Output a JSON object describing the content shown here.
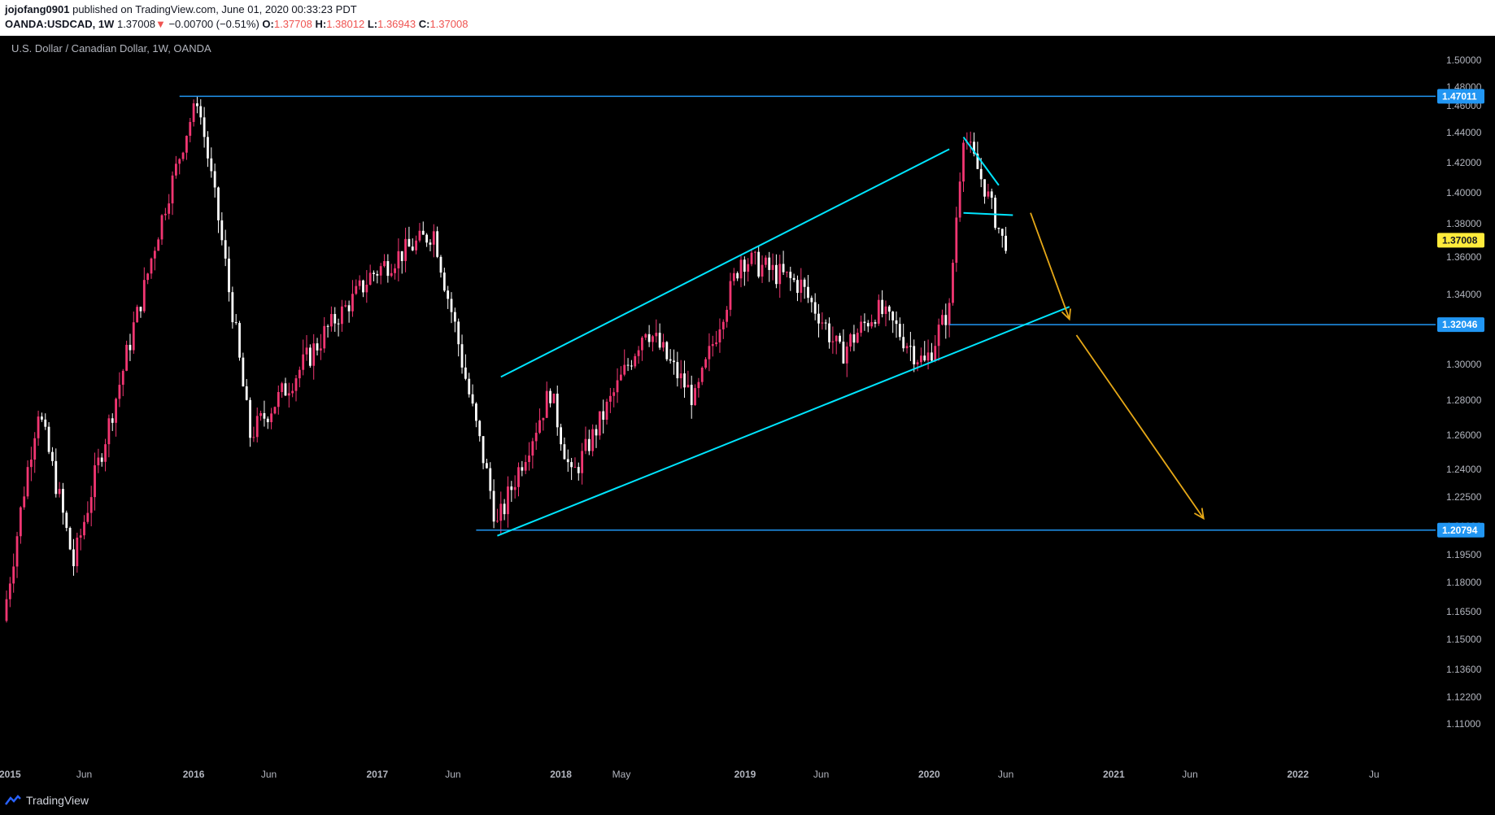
{
  "header": {
    "author": "jojofang0901",
    "published_text": "published on TradingView.com, June 01, 2020 00:33:23 PDT",
    "symbol": "OANDA:USDCAD, 1W",
    "last": "1.37008",
    "change": "−0.00700 (−0.51%)",
    "open_label": "O:",
    "open": "1.37708",
    "high_label": "H:",
    "high": "1.38012",
    "low_label": "L:",
    "low": "1.36943",
    "close_label": "C:",
    "close": "1.37008"
  },
  "footer": {
    "brand": "TradingView"
  },
  "colors": {
    "bull": "#f23672",
    "bear": "#ffffff",
    "hline": "#2196f3",
    "channel": "#00e5ff",
    "arrow": "#e6a817",
    "last_price_bg": "#ffeb3b"
  },
  "chart_data": {
    "type": "candlestick",
    "title": "U.S. Dollar / Canadian Dollar, 1W, OANDA",
    "ylim": [
      1.1,
      1.515
    ],
    "xlim": [
      "2014-12-29",
      "2022-10-01"
    ],
    "y_ticks": [
      "1.50000",
      "1.48000",
      "1.46000",
      "1.44000",
      "1.42000",
      "1.40000",
      "1.38000",
      "1.36000",
      "1.34000",
      "1.32000",
      "1.30000",
      "1.28000",
      "1.26000",
      "1.24000",
      "1.22500",
      "1.21000",
      "1.19500",
      "1.18000",
      "1.16500",
      "1.15000",
      "1.13600",
      "1.12200",
      "1.11000"
    ],
    "x_ticks": [
      {
        "date": "2015-01-05",
        "label": "2015"
      },
      {
        "date": "2015-06-01",
        "label": "Jun"
      },
      {
        "date": "2016-01-04",
        "label": "2016"
      },
      {
        "date": "2016-06-01",
        "label": "Jun"
      },
      {
        "date": "2017-01-02",
        "label": "2017"
      },
      {
        "date": "2017-06-01",
        "label": "Jun"
      },
      {
        "date": "2018-01-01",
        "label": "2018"
      },
      {
        "date": "2018-05-01",
        "label": "May"
      },
      {
        "date": "2019-01-01",
        "label": "2019"
      },
      {
        "date": "2019-06-01",
        "label": "Jun"
      },
      {
        "date": "2020-01-01",
        "label": "2020"
      },
      {
        "date": "2020-06-01",
        "label": "Jun"
      },
      {
        "date": "2021-01-01",
        "label": "2021"
      },
      {
        "date": "2021-06-01",
        "label": "Jun"
      },
      {
        "date": "2022-01-01",
        "label": "2022"
      },
      {
        "date": "2022-06-01",
        "label": "Ju"
      }
    ],
    "price_tags": [
      {
        "value": 1.47011,
        "label": "1.47011",
        "kind": "hline"
      },
      {
        "value": 1.37008,
        "label": "1.37008",
        "kind": "last"
      },
      {
        "value": 1.32046,
        "label": "1.32046",
        "kind": "hline"
      },
      {
        "value": 1.20794,
        "label": "1.20794",
        "kind": "hline"
      }
    ],
    "horizontal_lines": [
      {
        "value": 1.47011,
        "from": "2015-12-07",
        "to": "2022-10-01"
      },
      {
        "value": 1.32046,
        "from": "2020-02-10",
        "to": "2022-10-01"
      },
      {
        "value": 1.20794,
        "from": "2017-07-17",
        "to": "2022-10-01"
      }
    ],
    "trendlines": [
      {
        "from": [
          "2017-09-04",
          1.293
        ],
        "to": [
          "2020-02-10",
          1.429
        ]
      },
      {
        "from": [
          "2017-08-28",
          1.205
        ],
        "to": [
          "2020-10-05",
          1.332
        ]
      },
      {
        "from": [
          "2020-03-09",
          1.437
        ],
        "to": [
          "2020-05-18",
          1.405
        ]
      },
      {
        "from": [
          "2020-03-09",
          1.387
        ],
        "to": [
          "2020-06-15",
          1.3855
        ]
      }
    ],
    "arrows": [
      {
        "from": [
          "2020-07-20",
          1.387
        ],
        "to": [
          "2020-10-05",
          1.324
        ]
      },
      {
        "from": [
          "2020-10-19",
          1.315
        ],
        "to": [
          "2021-06-28",
          1.214
        ]
      }
    ],
    "anchors": [
      [
        "2014-12-29",
        1.16
      ],
      [
        "2015-03-09",
        1.275
      ],
      [
        "2015-05-18",
        1.19
      ],
      [
        "2015-09-28",
        1.335
      ],
      [
        "2016-01-18",
        1.465
      ],
      [
        "2016-05-02",
        1.26
      ],
      [
        "2016-12-26",
        1.35
      ],
      [
        "2017-05-01",
        1.375
      ],
      [
        "2017-09-04",
        1.21
      ],
      [
        "2017-12-18",
        1.285
      ],
      [
        "2018-01-29",
        1.235
      ],
      [
        "2018-06-25",
        1.32
      ],
      [
        "2018-10-01",
        1.28
      ],
      [
        "2018-12-31",
        1.36
      ],
      [
        "2019-04-29",
        1.345
      ],
      [
        "2019-07-15",
        1.305
      ],
      [
        "2019-09-30",
        1.33
      ],
      [
        "2019-12-30",
        1.3
      ],
      [
        "2020-02-17",
        1.33
      ],
      [
        "2020-03-16",
        1.44
      ],
      [
        "2020-05-01",
        1.4
      ],
      [
        "2020-06-01",
        1.37
      ]
    ]
  }
}
